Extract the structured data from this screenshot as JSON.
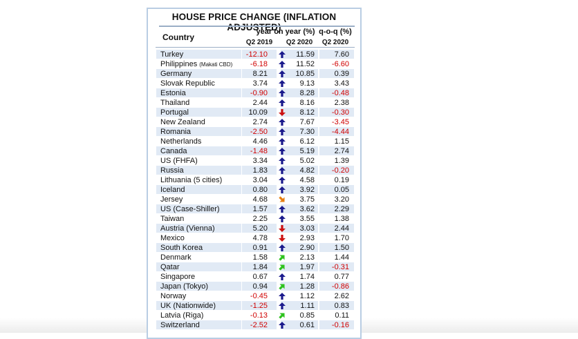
{
  "table": {
    "title": "HOUSE PRICE CHANGE (INFLATION ADJUSTED)",
    "headers": {
      "country": "Country",
      "yoy": "year on year (%)",
      "qoq": "q-o-q (%)",
      "q2_2019": "Q2 2019",
      "q2_2020": "Q2 2020",
      "q2_2020_qoq": "Q2 2020"
    },
    "rows": [
      {
        "country": "Turkey",
        "y2019": "-12.10",
        "arrow": "up",
        "y2020": "11.59",
        "qoq": "7.60"
      },
      {
        "country": "Philippines",
        "note": "(Makati CBD)",
        "y2019": "-6.18",
        "arrow": "up",
        "y2020": "11.52",
        "qoq": "-6.60"
      },
      {
        "country": "Germany",
        "y2019": "8.21",
        "arrow": "up",
        "y2020": "10.85",
        "qoq": "0.39"
      },
      {
        "country": "Slovak Republic",
        "y2019": "3.74",
        "arrow": "up",
        "y2020": "9.13",
        "qoq": "3.43"
      },
      {
        "country": "Estonia",
        "y2019": "-0.90",
        "arrow": "up",
        "y2020": "8.28",
        "qoq": "-0.48"
      },
      {
        "country": "Thailand",
        "y2019": "2.44",
        "arrow": "up",
        "y2020": "8.16",
        "qoq": "2.38"
      },
      {
        "country": "Portugal",
        "y2019": "10.09",
        "arrow": "down",
        "y2020": "8.12",
        "qoq": "-0.30"
      },
      {
        "country": "New Zealand",
        "y2019": "2.74",
        "arrow": "up",
        "y2020": "7.67",
        "qoq": "-3.45"
      },
      {
        "country": "Romania",
        "y2019": "-2.50",
        "arrow": "up",
        "y2020": "7.30",
        "qoq": "-4.44"
      },
      {
        "country": "Netherlands",
        "y2019": "4.46",
        "arrow": "up",
        "y2020": "6.12",
        "qoq": "1.15"
      },
      {
        "country": "Canada",
        "y2019": "-1.48",
        "arrow": "up",
        "y2020": "5.19",
        "qoq": "2.74"
      },
      {
        "country": "US (FHFA)",
        "y2019": "3.34",
        "arrow": "up",
        "y2020": "5.02",
        "qoq": "1.39"
      },
      {
        "country": "Russia",
        "y2019": "1.83",
        "arrow": "up",
        "y2020": "4.82",
        "qoq": "-0.20"
      },
      {
        "country": "Lithuania (5 cities)",
        "y2019": "3.04",
        "arrow": "up",
        "y2020": "4.58",
        "qoq": "0.19"
      },
      {
        "country": "Iceland",
        "y2019": "0.80",
        "arrow": "up",
        "y2020": "3.92",
        "qoq": "0.05"
      },
      {
        "country": "Jersey",
        "y2019": "4.68",
        "arrow": "down-right",
        "y2020": "3.75",
        "qoq": "3.20"
      },
      {
        "country": "US (Case-Shiller)",
        "y2019": "1.57",
        "arrow": "up",
        "y2020": "3.62",
        "qoq": "2.29"
      },
      {
        "country": "Taiwan",
        "y2019": "2.25",
        "arrow": "up",
        "y2020": "3.55",
        "qoq": "1.38"
      },
      {
        "country": "Austria (Vienna)",
        "y2019": "5.20",
        "arrow": "down",
        "y2020": "3.03",
        "qoq": "2.44"
      },
      {
        "country": "Mexico",
        "y2019": "4.78",
        "arrow": "down",
        "y2020": "2.93",
        "qoq": "1.70"
      },
      {
        "country": "South Korea",
        "y2019": "0.91",
        "arrow": "up",
        "y2020": "2.90",
        "qoq": "1.50"
      },
      {
        "country": "Denmark",
        "y2019": "1.58",
        "arrow": "up-right",
        "y2020": "2.13",
        "qoq": "1.44"
      },
      {
        "country": "Qatar",
        "y2019": "1.84",
        "arrow": "up-right",
        "y2020": "1.97",
        "qoq": "-0.31"
      },
      {
        "country": "Singapore",
        "y2019": "0.67",
        "arrow": "up",
        "y2020": "1.74",
        "qoq": "0.77"
      },
      {
        "country": "Japan (Tokyo)",
        "y2019": "0.94",
        "arrow": "up-right",
        "y2020": "1.28",
        "qoq": "-0.86"
      },
      {
        "country": "Norway",
        "y2019": "-0.45",
        "arrow": "up",
        "y2020": "1.12",
        "qoq": "2.62"
      },
      {
        "country": "UK (Nationwide)",
        "y2019": "-1.25",
        "arrow": "up",
        "y2020": "1.11",
        "qoq": "0.83"
      },
      {
        "country": "Latvia (Riga)",
        "y2019": "-0.13",
        "arrow": "up-right",
        "y2020": "0.85",
        "qoq": "0.11"
      },
      {
        "country": "Switzerland",
        "y2019": "-2.52",
        "arrow": "up",
        "y2020": "0.61",
        "qoq": "-0.16"
      }
    ]
  },
  "colors": {
    "negative": "#d00000",
    "arrow_up": "#1a1a8c",
    "arrow_down": "#cc1111",
    "arrow_down_right": "#e67e10",
    "arrow_up_right": "#2ec21e",
    "row_shade": "#e1eaf5",
    "border": "#b9cde3"
  }
}
